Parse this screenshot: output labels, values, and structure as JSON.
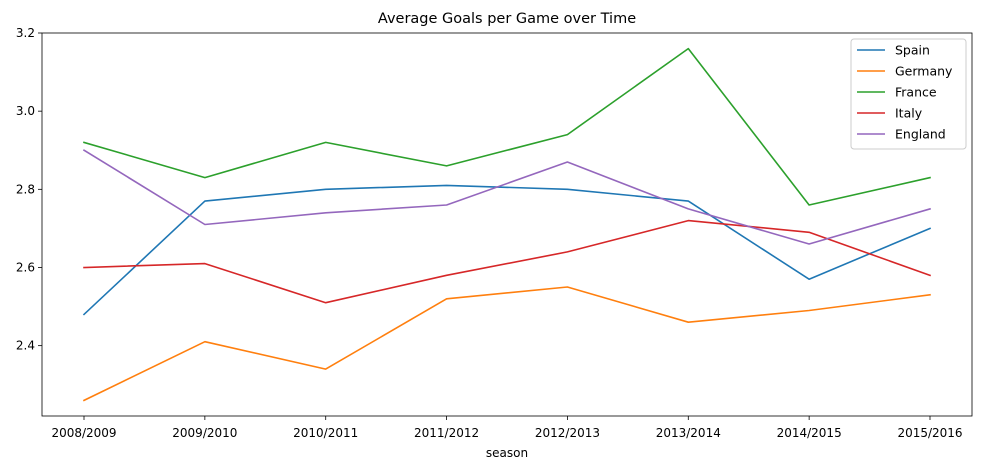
{
  "chart_data": {
    "type": "line",
    "title": "Average Goals per Game over Time",
    "xlabel": "season",
    "ylabel": "",
    "categories": [
      "2008/2009",
      "2009/2010",
      "2010/2011",
      "2011/2012",
      "2012/2013",
      "2013/2014",
      "2014/2015",
      "2015/2016"
    ],
    "ylim": [
      2.22,
      3.2
    ],
    "yticks": [
      2.4,
      2.6,
      2.8,
      3.0,
      3.2
    ],
    "ytick_labels": [
      "2.4",
      "2.6",
      "2.8",
      "3.0",
      "3.2"
    ],
    "grid": false,
    "legend_position": "top-right",
    "series": [
      {
        "name": "Spain",
        "color": "#1f77b4",
        "values": [
          2.48,
          2.77,
          2.8,
          2.81,
          2.8,
          2.77,
          2.57,
          2.7
        ]
      },
      {
        "name": "Germany",
        "color": "#ff7f0e",
        "values": [
          2.26,
          2.41,
          2.34,
          2.52,
          2.55,
          2.46,
          2.49,
          2.53
        ]
      },
      {
        "name": "France",
        "color": "#2ca02c",
        "values": [
          2.92,
          2.83,
          2.92,
          2.86,
          2.94,
          3.16,
          2.76,
          2.83
        ]
      },
      {
        "name": "Italy",
        "color": "#d62728",
        "values": [
          2.6,
          2.61,
          2.51,
          2.58,
          2.64,
          2.72,
          2.69,
          2.58
        ]
      },
      {
        "name": "England",
        "color": "#9467bd",
        "values": [
          2.9,
          2.71,
          2.74,
          2.76,
          2.87,
          2.75,
          2.66,
          2.75
        ]
      }
    ]
  }
}
